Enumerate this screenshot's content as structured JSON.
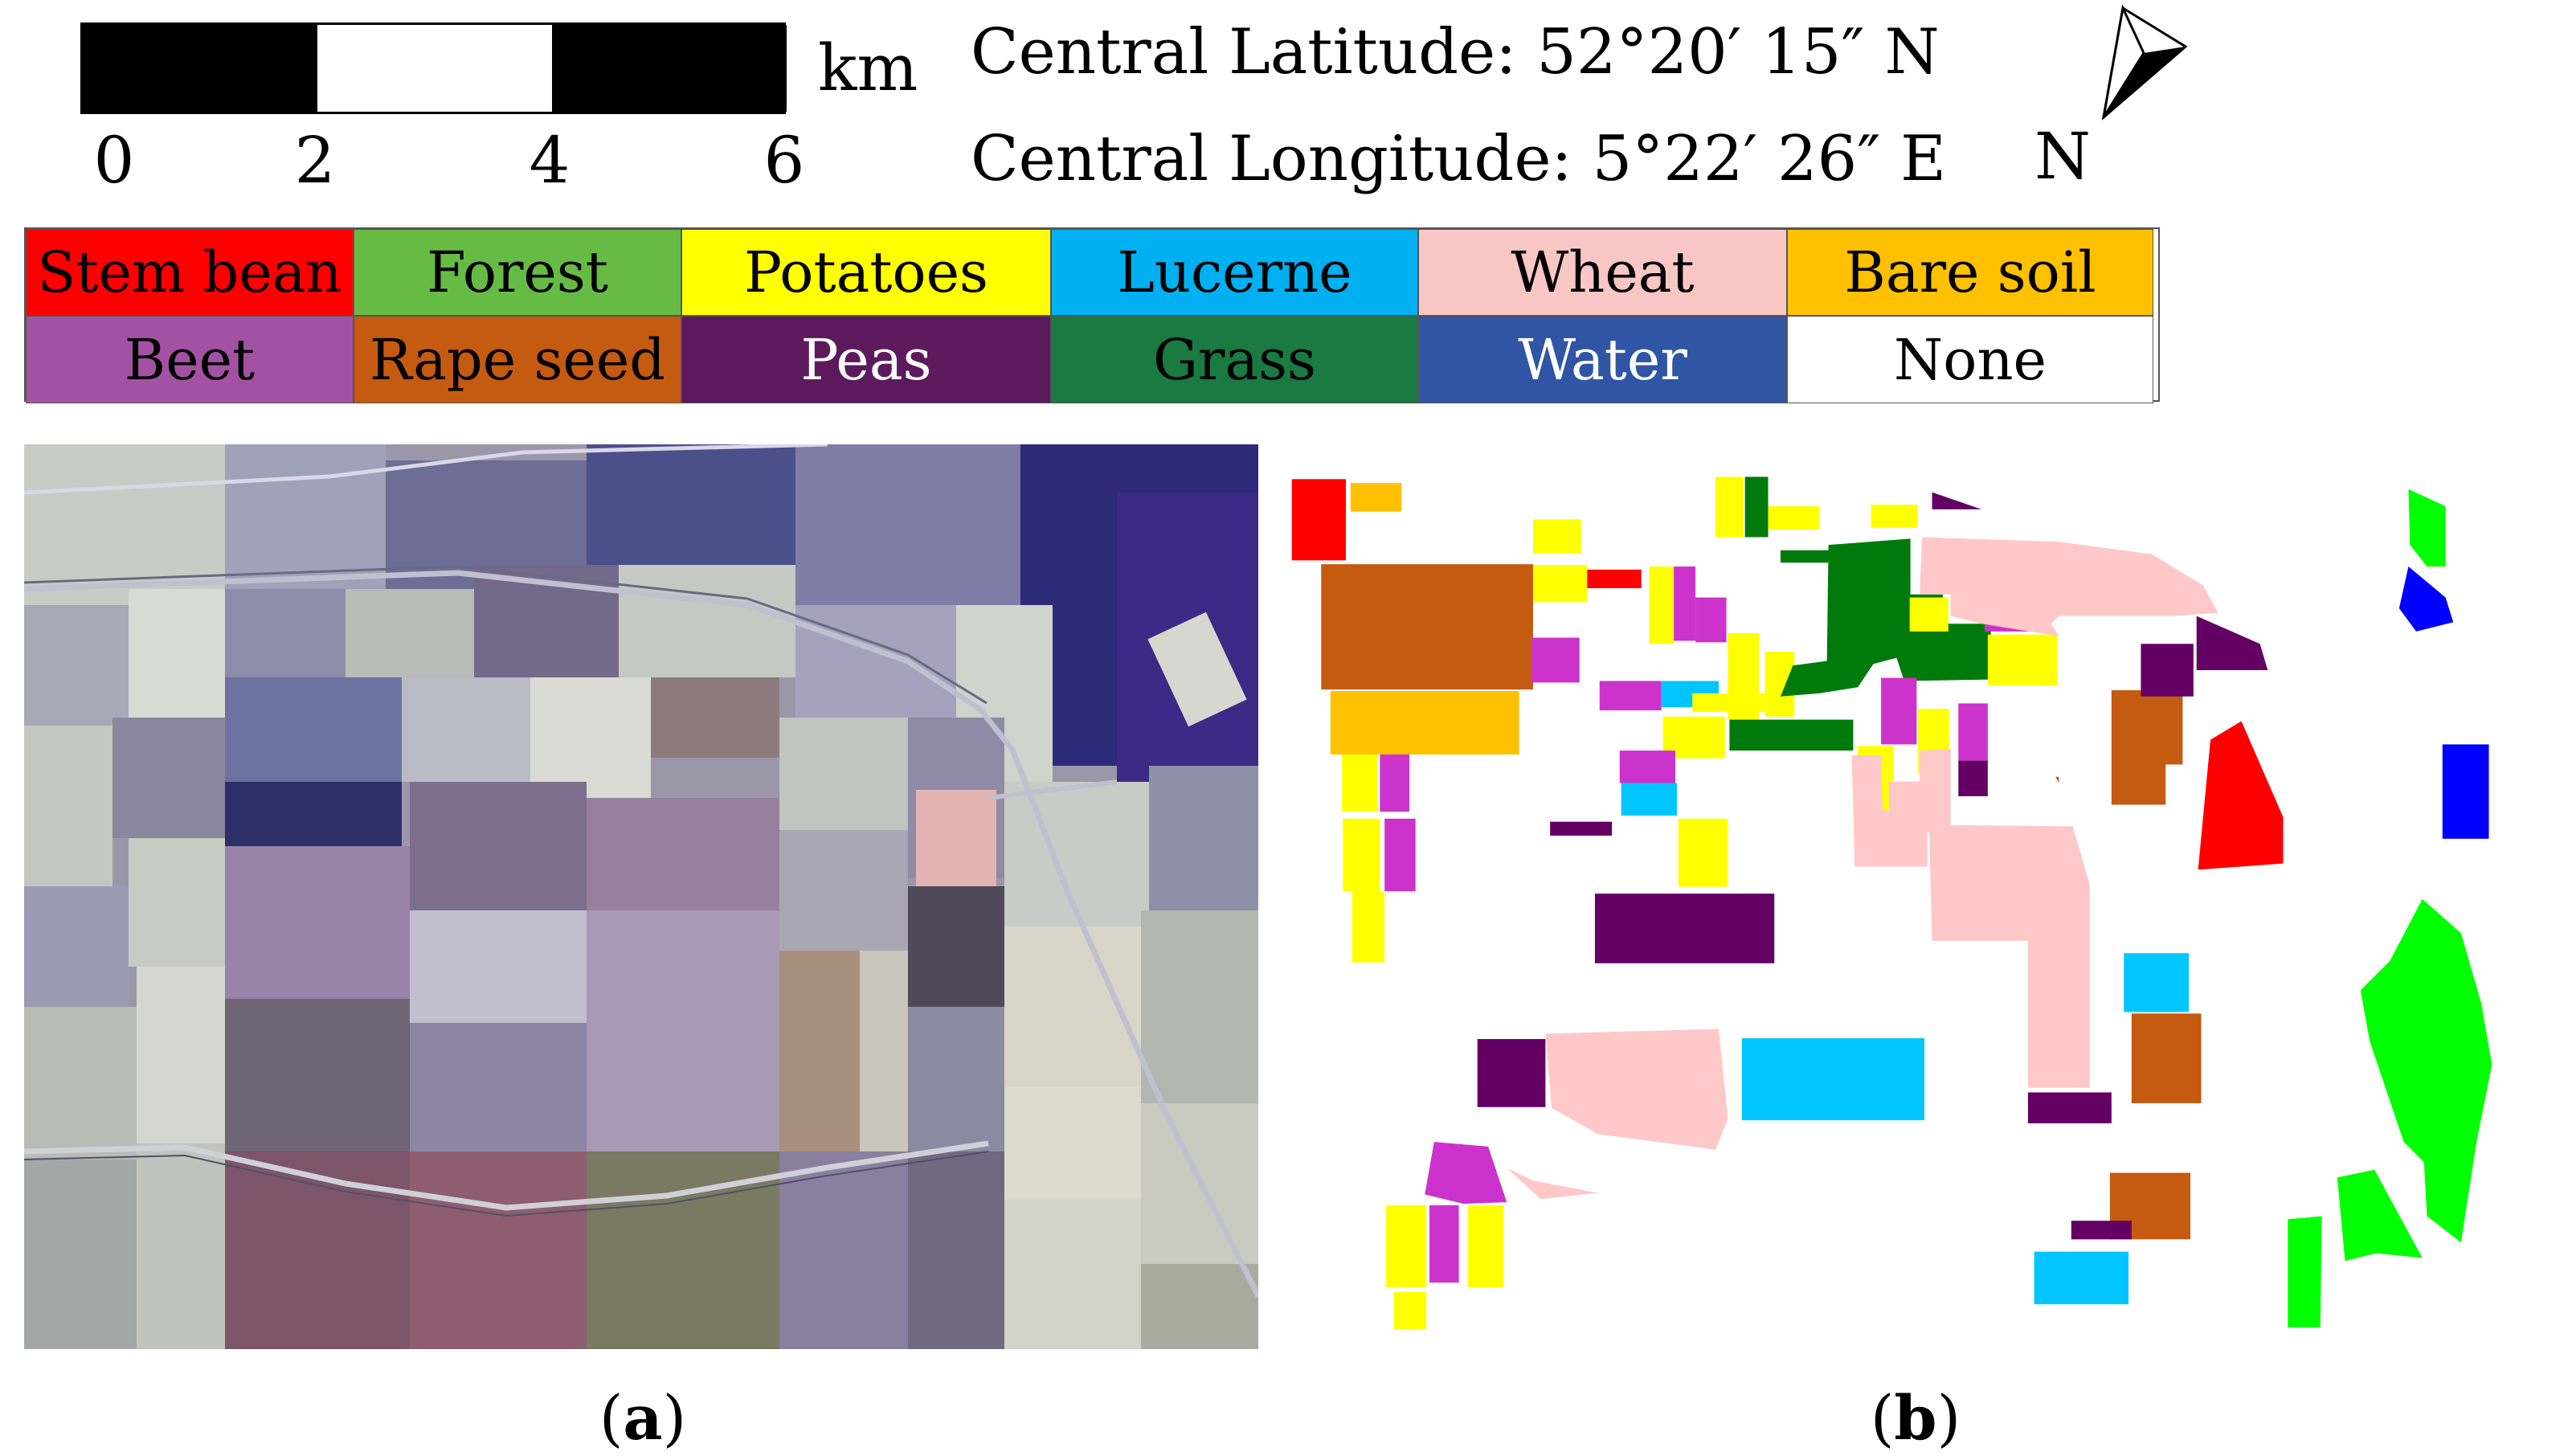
{
  "scale_bar": {
    "ticks": [
      "0",
      "2",
      "4",
      "6"
    ],
    "unit": "km",
    "segment_colors": [
      "#000000",
      "#ffffff",
      "#000000"
    ]
  },
  "coordinates": {
    "latitude": "Central Latitude:  52°20′  15″  N",
    "longitude": "Central Longitude: 5°22′  26″  E"
  },
  "north_arrow": {
    "label": "N",
    "icon": "north-arrow-icon"
  },
  "legend": [
    {
      "label": "Stem bean",
      "color": "#ff0000",
      "text_color": "#000000"
    },
    {
      "label": "Forest",
      "color": "#66bb44",
      "text_color": "#000000"
    },
    {
      "label": "Potatoes",
      "color": "#ffff00",
      "text_color": "#000000"
    },
    {
      "label": "Lucerne",
      "color": "#00b0f0",
      "text_color": "#000000"
    },
    {
      "label": "Wheat",
      "color": "#f9c6c6",
      "text_color": "#000000"
    },
    {
      "label": "Bare soil",
      "color": "#ffc000",
      "text_color": "#000000"
    },
    {
      "label": "Beet",
      "color": "#a352a3",
      "text_color": "#000000"
    },
    {
      "label": "Rape seed",
      "color": "#c55a11",
      "text_color": "#000000"
    },
    {
      "label": "Peas",
      "color": "#5c1a5c",
      "text_color": "#ffffff"
    },
    {
      "label": "Grass",
      "color": "#1a7a42",
      "text_color": "#000000"
    },
    {
      "label": "Water",
      "color": "#2f55a4",
      "text_color": "#ffffff"
    },
    {
      "label": "None",
      "color": "#ffffff",
      "text_color": "#000000"
    }
  ],
  "panels": {
    "a": {
      "caption_open": "(",
      "caption_letter": "a",
      "caption_close": ")"
    },
    "b": {
      "caption_open": "(",
      "caption_letter": "b",
      "caption_close": ")"
    }
  },
  "map_class_colors": {
    "stem_bean": "#ff0000",
    "bare_soil": "#ffc000",
    "rape_seed": "#c55a11",
    "potatoes": "#ffff00",
    "beet": "#cc33cc",
    "lucerne": "#00c5ff",
    "grass": "#007a0a",
    "peas": "#640064",
    "wheat": "#ffc8c8",
    "forest": "#00ff00",
    "water": "#0000ff"
  }
}
